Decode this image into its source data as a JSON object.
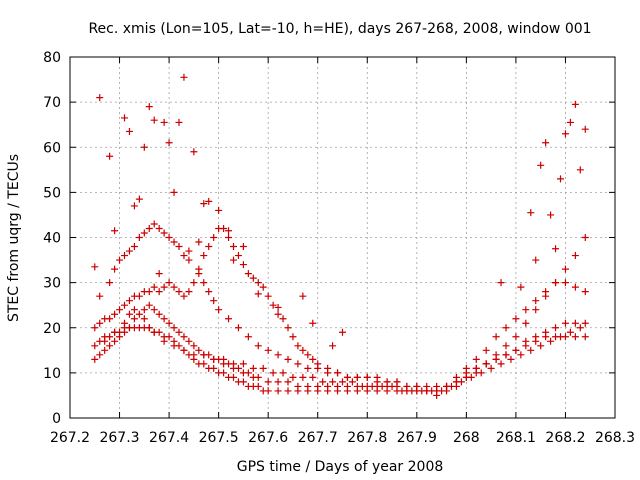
{
  "chart_data": {
    "type": "scatter",
    "title": "Rec. xmis (Lon=105, Lat=-10, h=HE), days 267-268, 2008, window 001",
    "xlabel": "GPS time / Days of year 2008",
    "ylabel": "STEC from uqrg / TECUs",
    "xlim": [
      267.2,
      268.3
    ],
    "ylim": [
      0,
      80
    ],
    "xticks": [
      "267.2",
      "267.3",
      "267.4",
      "267.5",
      "267.6",
      "267.7",
      "267.8",
      "267.9",
      "268",
      "268.1",
      "268.2",
      "268.3"
    ],
    "yticks": [
      "0",
      "10",
      "20",
      "30",
      "40",
      "50",
      "60",
      "70",
      "80"
    ],
    "grid": true,
    "marker": "plus",
    "color": "#cc0000",
    "series": [
      {
        "x": [
          267.25,
          267.26,
          267.27,
          267.28,
          267.29,
          267.3,
          267.31,
          267.32,
          267.33,
          267.34,
          267.35,
          267.36,
          267.37,
          267.38,
          267.39,
          267.4,
          267.41,
          267.42,
          267.43,
          267.44,
          267.45,
          267.46,
          267.47,
          267.48,
          267.49,
          267.5,
          267.51,
          267.52,
          267.53,
          267.54,
          267.55,
          267.56,
          267.57,
          267.58,
          267.59,
          267.6,
          267.62,
          267.64,
          267.66,
          267.68,
          267.7,
          267.72,
          267.74,
          267.76,
          267.78,
          267.8,
          267.82,
          267.84,
          267.86,
          267.88,
          267.9,
          267.92,
          267.94,
          267.96,
          267.98,
          268.0,
          268.02,
          268.04,
          268.06,
          268.08,
          268.1,
          268.12,
          268.14,
          268.16,
          268.18,
          268.2,
          268.22,
          268.24
        ],
        "y": [
          16,
          17,
          18,
          18,
          19,
          19,
          20,
          20,
          20,
          20,
          20,
          20,
          19,
          19,
          18,
          18,
          17,
          16,
          15,
          14,
          13,
          12,
          12,
          11,
          11,
          10,
          10,
          9,
          9,
          8,
          8,
          7,
          7,
          7,
          6,
          6,
          6,
          6,
          6,
          6,
          6,
          6,
          6,
          6,
          6,
          6,
          6,
          6,
          6,
          6,
          6,
          6,
          6,
          7,
          8,
          10,
          11,
          12,
          13,
          14,
          15,
          16,
          17,
          18,
          18,
          18,
          18,
          18
        ]
      },
      {
        "x": [
          267.25,
          267.26,
          267.27,
          267.28,
          267.29,
          267.3,
          267.31,
          267.32,
          267.33,
          267.34,
          267.35,
          267.36,
          267.37,
          267.38,
          267.39,
          267.4,
          267.41,
          267.42,
          267.43,
          267.44,
          267.45,
          267.46,
          267.47,
          267.48,
          267.49,
          267.5,
          267.51,
          267.52,
          267.53,
          267.54,
          267.55,
          267.56,
          267.57,
          267.58,
          267.6,
          267.62,
          267.64,
          267.66,
          267.68,
          267.7,
          267.72,
          267.74,
          267.76,
          267.78,
          267.8,
          267.82,
          267.84,
          267.86,
          267.88,
          267.9,
          267.92,
          267.94,
          267.96,
          267.98,
          268.0,
          268.02,
          268.04,
          268.06,
          268.08,
          268.1,
          268.12,
          268.14,
          268.16,
          268.18,
          268.2,
          268.22,
          268.24
        ],
        "y": [
          13,
          14,
          15,
          16,
          17,
          18,
          19,
          20,
          22,
          23,
          24,
          25,
          24,
          23,
          22,
          21,
          20,
          19,
          18,
          17,
          16,
          15,
          14,
          14,
          13,
          13,
          12,
          12,
          11,
          11,
          10,
          10,
          9,
          9,
          8,
          8,
          8,
          7,
          7,
          7,
          7,
          7,
          7,
          7,
          7,
          7,
          7,
          7,
          6,
          6,
          6,
          5,
          6,
          7,
          9,
          11,
          12,
          13,
          14,
          15,
          17,
          18,
          19,
          20,
          21,
          21,
          21
        ]
      },
      {
        "x": [
          267.25,
          267.26,
          267.27,
          267.28,
          267.29,
          267.3,
          267.31,
          267.32,
          267.33,
          267.34,
          267.35,
          267.36,
          267.37,
          267.38,
          267.39,
          267.4,
          267.41,
          267.42,
          267.43,
          267.44,
          267.45,
          267.46,
          267.47,
          267.48,
          267.49,
          267.5,
          267.51,
          267.52,
          267.53,
          267.54,
          267.55,
          267.56,
          267.57,
          267.58,
          267.59,
          267.6,
          267.61,
          267.62,
          267.63,
          267.64,
          267.65,
          267.66,
          267.67,
          267.68,
          267.69,
          267.7,
          267.72,
          267.74,
          267.76,
          267.78,
          267.8,
          267.82,
          267.84,
          267.86,
          267.88,
          267.9,
          267.92,
          267.94,
          267.96,
          267.98,
          268.0,
          268.02,
          268.04,
          268.06,
          268.08,
          268.1,
          268.12,
          268.14,
          268.16,
          268.18,
          268.2,
          268.22,
          268.24
        ],
        "y": [
          20,
          21,
          22,
          22,
          23,
          24,
          25,
          26,
          27,
          27,
          28,
          28,
          29,
          28,
          29,
          30,
          29,
          28,
          27,
          28,
          30,
          33,
          36,
          38,
          40,
          42,
          42,
          40,
          38,
          36,
          34,
          32,
          31,
          30,
          29,
          27,
          25,
          23,
          22,
          20,
          18,
          16,
          15,
          14,
          13,
          12,
          11,
          10,
          9,
          9,
          9,
          9,
          8,
          8,
          7,
          7,
          6,
          6,
          7,
          9,
          11,
          13,
          15,
          18,
          20,
          22,
          24,
          26,
          28,
          30,
          30,
          29,
          28
        ]
      },
      {
        "x": [
          267.26,
          267.28,
          267.29,
          267.3,
          267.31,
          267.32,
          267.33,
          267.34,
          267.35,
          267.36,
          267.37,
          267.38,
          267.39,
          267.4,
          267.41,
          267.42,
          267.43,
          267.44,
          267.46,
          267.47,
          267.48,
          267.49,
          267.5,
          267.52,
          267.54,
          267.56,
          267.58,
          267.6,
          267.62,
          267.64,
          267.66,
          267.68,
          267.7,
          267.72,
          267.74,
          267.76,
          267.78,
          267.8,
          267.82,
          267.84,
          267.86,
          267.88,
          267.9,
          267.92,
          267.94,
          267.96,
          267.98,
          268.0,
          268.02,
          268.04,
          268.06,
          268.08,
          268.1,
          268.12,
          268.14,
          268.16,
          268.18,
          268.2,
          268.22,
          268.24
        ],
        "y": [
          27,
          30,
          33,
          35,
          36,
          37,
          38,
          40,
          41,
          42,
          43,
          42,
          41,
          40,
          39,
          38,
          36,
          35,
          32,
          30,
          28,
          26,
          24,
          22,
          20,
          18,
          16,
          15,
          14,
          13,
          12,
          11,
          11,
          10,
          10,
          9,
          9,
          9,
          8,
          8,
          8,
          7,
          7,
          7,
          7,
          7,
          8,
          9,
          10,
          12,
          14,
          16,
          18,
          21,
          24,
          27,
          30,
          33,
          36,
          40
        ]
      },
      {
        "x": [
          267.27,
          267.29,
          267.31,
          267.32,
          267.33,
          267.35,
          267.36,
          267.37,
          267.39,
          267.41,
          267.43,
          267.45,
          267.47,
          267.49,
          267.51,
          267.53,
          267.55,
          267.57,
          267.59,
          267.61,
          267.63,
          267.65,
          267.67,
          267.69,
          267.71,
          267.73,
          267.75,
          267.77,
          267.79,
          267.81,
          267.83,
          267.85,
          267.87,
          267.89,
          267.91,
          267.93,
          267.95,
          267.97,
          267.99,
          268.01,
          268.03,
          268.05,
          268.07,
          268.09,
          268.11,
          268.13,
          268.15,
          268.17,
          268.19,
          268.21,
          268.23
        ],
        "y": [
          17,
          19,
          21,
          23,
          24,
          22,
          20,
          19,
          17,
          16,
          15,
          14,
          14,
          13,
          13,
          12,
          12,
          11,
          11,
          10,
          10,
          9,
          9,
          9,
          8,
          8,
          8,
          8,
          7,
          7,
          7,
          7,
          6,
          6,
          6,
          6,
          6,
          7,
          8,
          9,
          10,
          11,
          12,
          13,
          14,
          15,
          16,
          17,
          18,
          19,
          20
        ]
      }
    ],
    "outliers": {
      "x": [
        267.25,
        267.26,
        267.28,
        267.29,
        267.31,
        267.32,
        267.33,
        267.34,
        267.35,
        267.36,
        267.37,
        267.38,
        267.39,
        267.4,
        267.41,
        267.42,
        267.43,
        267.44,
        267.45,
        267.46,
        267.47,
        267.48,
        267.5,
        267.52,
        267.53,
        267.55,
        267.58,
        267.62,
        267.67,
        267.69,
        267.73,
        267.75,
        268.07,
        268.11,
        268.13,
        268.14,
        268.15,
        268.16,
        268.17,
        268.18,
        268.19,
        268.2,
        268.21,
        268.22,
        268.23,
        268.24
      ],
      "y": [
        33.5,
        71,
        58,
        41.5,
        66.5,
        63.5,
        47,
        48.5,
        60,
        69,
        66,
        32,
        65.5,
        61,
        50,
        65.5,
        75.5,
        37,
        59,
        39,
        47.5,
        48,
        46,
        41.5,
        35,
        38,
        27.5,
        24.5,
        27,
        21,
        16,
        19,
        30,
        29,
        45.5,
        35,
        56,
        61,
        45,
        37.5,
        53,
        63,
        65.5,
        69.5,
        55,
        64
      ]
    }
  }
}
